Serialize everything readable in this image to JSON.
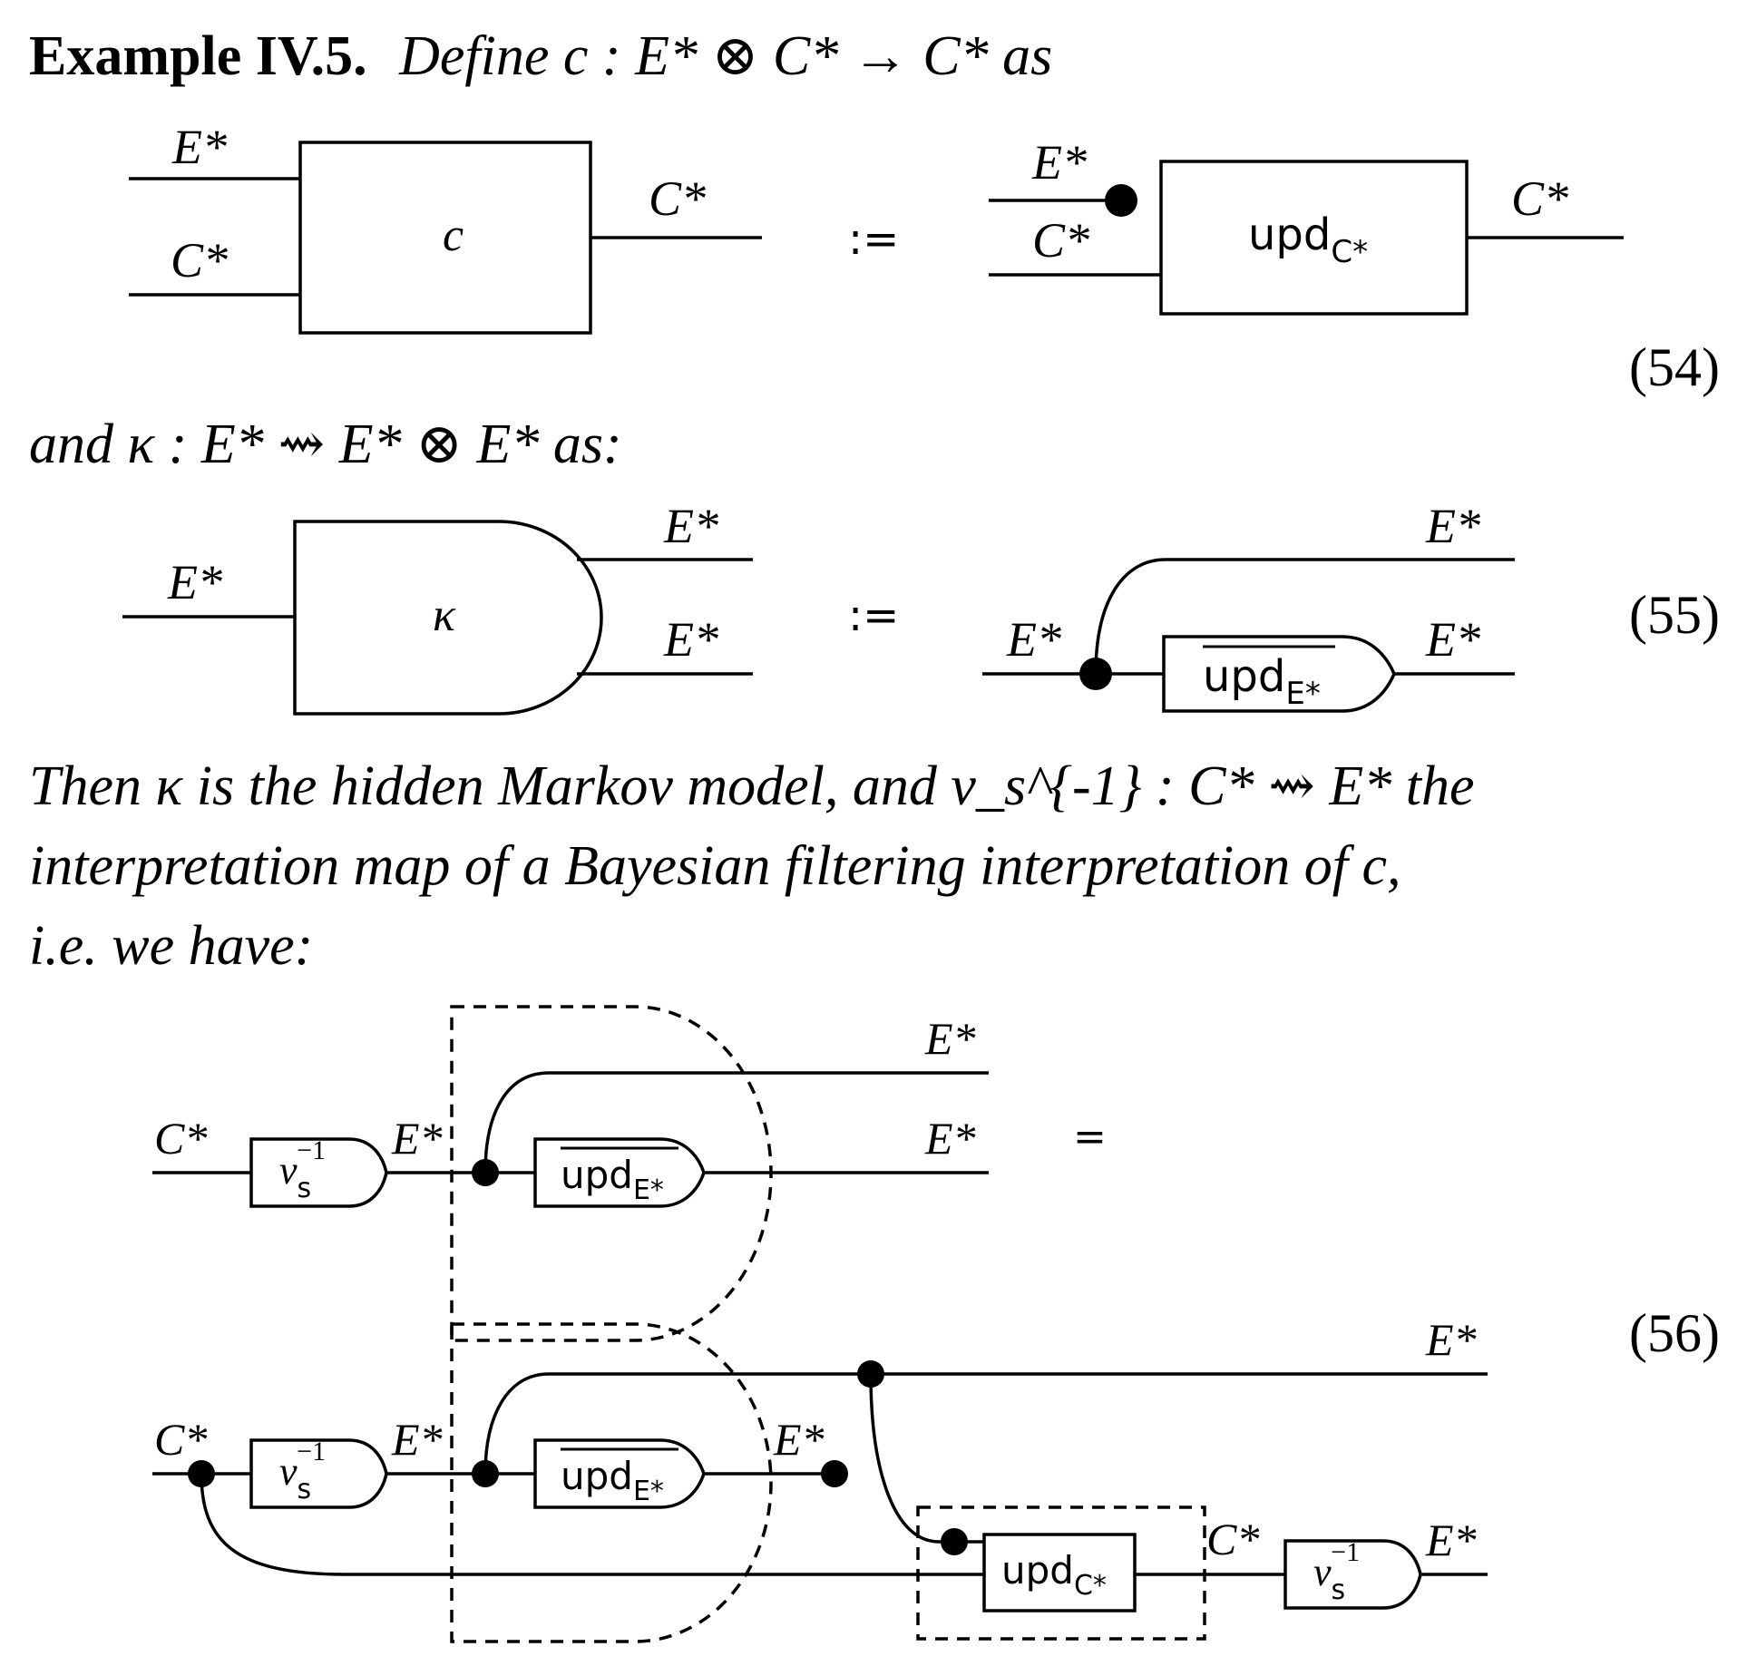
{
  "heading": {
    "label": "Example IV.5.",
    "text": "Define c : E* ⊗ C* → C* as"
  },
  "sentence2": "and κ : E* ⇝ E* ⊗ E* as:",
  "paragraph": {
    "line1": "Then κ is the hidden Markov model, and ν_s^{-1} : C* ⇝ E* the",
    "line2": "interpretation map of a Bayesian filtering interpretation of c,",
    "line3": "i.e. we have:"
  },
  "equation_numbers": [
    "(54)",
    "(55)",
    "(56)"
  ],
  "symbols": {
    "assign": ":=",
    "equals": "=",
    "E_star": "E*",
    "C_star": "C*",
    "c": "c",
    "kappa": "κ",
    "nu": "ν",
    "nu_sub": "s",
    "nu_sup": "−1",
    "upd": "upd",
    "upd_C_sub": "C*",
    "upd_E_sub": "E*"
  }
}
